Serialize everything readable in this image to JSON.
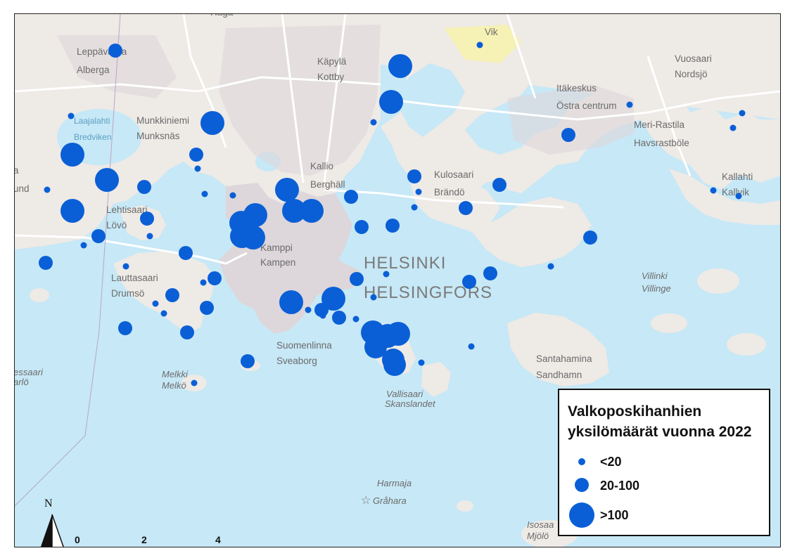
{
  "legend": {
    "title_line1": "Valkoposkihanhien",
    "title_line2": "yksilömäärät vuonna 2022",
    "items": [
      {
        "label": "<20",
        "size_class": "small"
      },
      {
        "label": "20-100",
        "size_class": "medium"
      },
      {
        "label": ">100",
        "size_class": "large"
      }
    ]
  },
  "colors": {
    "water": "#c7e8f6",
    "land": "#eeeae6",
    "urban": "#ddd6da",
    "green": "#e6efe0",
    "dots": "#0a5fd6",
    "yellow_area": "#faf3a0"
  },
  "north_arrow": {
    "label": "N"
  },
  "scale_bar": {
    "ticks": [
      "0",
      "2",
      "4 km"
    ]
  },
  "place_labels": [
    {
      "text": "Haga"
    },
    {
      "text": "Leppävaara"
    },
    {
      "text": "Alberga"
    },
    {
      "text": "Käpylä"
    },
    {
      "text": "Kottby"
    },
    {
      "text": "Vik"
    },
    {
      "text": "Vuosaari"
    },
    {
      "text": "Nordsjö"
    },
    {
      "text": "Itäkeskus"
    },
    {
      "text": "Östra centrum"
    },
    {
      "text": "Munkkiniemi"
    },
    {
      "text": "Munksnäs"
    },
    {
      "text": "Meri-Rastila"
    },
    {
      "text": "Havsrastböle"
    },
    {
      "text": "Kallio"
    },
    {
      "text": "Berghäll"
    },
    {
      "text": "Kulosaari"
    },
    {
      "text": "Brändö"
    },
    {
      "text": "Kallahti"
    },
    {
      "text": "Kallvik"
    },
    {
      "text": "Lehtisaari"
    },
    {
      "text": "Lövö"
    },
    {
      "text": "Kamppi"
    },
    {
      "text": "Kampen"
    },
    {
      "text": "Lauttasaari"
    },
    {
      "text": "Drumsö"
    },
    {
      "text": "Suomenlinna"
    },
    {
      "text": "Sveaborg"
    },
    {
      "text": "Santahamina"
    },
    {
      "text": "Sandhamn"
    },
    {
      "text": "und"
    },
    {
      "text": "a"
    }
  ],
  "city_labels": [
    {
      "text": "HELSINKI"
    },
    {
      "text": "HELSINGFORS"
    }
  ],
  "island_labels": [
    {
      "text": "Villinki"
    },
    {
      "text": "Villinge"
    },
    {
      "text": "Melkki"
    },
    {
      "text": "Melkö"
    },
    {
      "text": "Vallisaari"
    },
    {
      "text": "Skanslandet"
    },
    {
      "text": "Harmaja"
    },
    {
      "text": "Gråhara"
    },
    {
      "text": "Isosaa"
    },
    {
      "text": "Mjölö"
    },
    {
      "text": "essaari"
    },
    {
      "text": "arlö"
    }
  ],
  "water_labels": [
    {
      "text": "Laajalahti"
    },
    {
      "text": "Bredviken"
    }
  ],
  "points": [
    {
      "size": "medium"
    },
    {
      "size": "small"
    },
    {
      "size": "large"
    },
    {
      "size": "large"
    },
    {
      "size": "large"
    },
    {
      "size": "medium"
    },
    {
      "size": "large"
    },
    {
      "size": "small"
    },
    {
      "size": "medium"
    },
    {
      "size": "small"
    },
    {
      "size": "medium"
    },
    {
      "size": "small"
    },
    {
      "size": "large"
    },
    {
      "size": "medium"
    },
    {
      "size": "small"
    },
    {
      "size": "small"
    },
    {
      "size": "small"
    },
    {
      "size": "large"
    },
    {
      "size": "medium"
    },
    {
      "size": "medium"
    },
    {
      "size": "small"
    },
    {
      "size": "medium"
    },
    {
      "size": "medium"
    },
    {
      "size": "medium"
    },
    {
      "size": "small"
    },
    {
      "size": "large"
    },
    {
      "size": "large"
    },
    {
      "size": "large"
    },
    {
      "size": "large"
    },
    {
      "size": "large"
    },
    {
      "size": "medium"
    },
    {
      "size": "medium"
    },
    {
      "size": "medium"
    },
    {
      "size": "medium"
    },
    {
      "size": "small"
    },
    {
      "size": "small"
    },
    {
      "size": "medium"
    },
    {
      "size": "small"
    },
    {
      "size": "medium"
    },
    {
      "size": "small"
    },
    {
      "size": "small"
    },
    {
      "size": "large"
    },
    {
      "size": "large"
    },
    {
      "size": "small"
    },
    {
      "size": "medium"
    },
    {
      "size": "medium"
    },
    {
      "size": "small"
    },
    {
      "size": "medium"
    },
    {
      "size": "small"
    },
    {
      "size": "large"
    },
    {
      "size": "medium"
    },
    {
      "size": "large"
    },
    {
      "size": "large"
    },
    {
      "size": "large"
    },
    {
      "size": "large"
    },
    {
      "size": "small"
    },
    {
      "size": "small"
    },
    {
      "size": "small"
    },
    {
      "size": "medium"
    },
    {
      "size": "medium"
    },
    {
      "size": "medium"
    },
    {
      "size": "small"
    },
    {
      "size": "small"
    },
    {
      "size": "small"
    },
    {
      "size": "small"
    },
    {
      "size": "small"
    },
    {
      "size": "medium"
    },
    {
      "size": "small"
    },
    {
      "size": "medium"
    },
    {
      "size": "small"
    },
    {
      "size": "small"
    },
    {
      "size": "small"
    },
    {
      "size": "medium"
    },
    {
      "size": "medium"
    }
  ]
}
